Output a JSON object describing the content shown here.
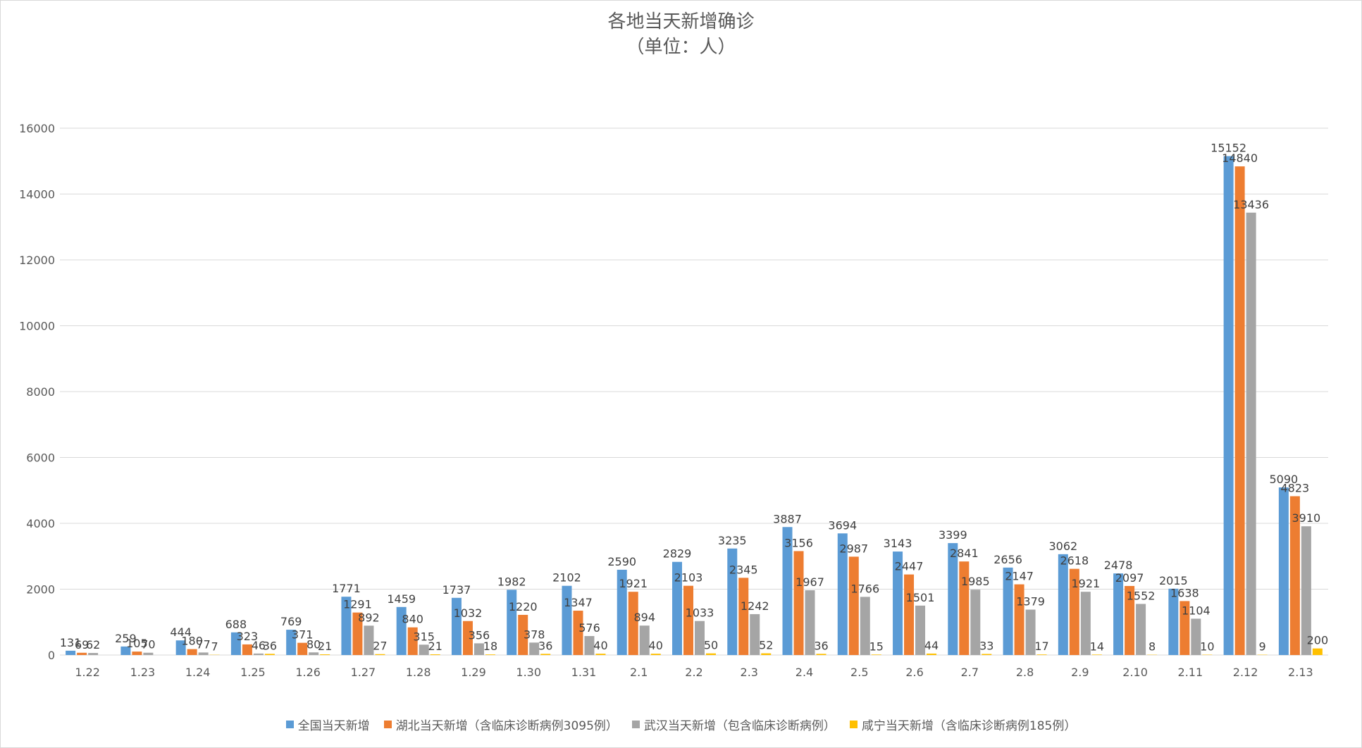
{
  "chart_data": {
    "type": "bar",
    "title": "各地当天新增确诊",
    "subtitle": "（单位：人）",
    "xlabel": "",
    "ylabel": "",
    "ylim": [
      0,
      16000
    ],
    "yticks": [
      0,
      2000,
      4000,
      6000,
      8000,
      10000,
      12000,
      14000,
      16000
    ],
    "grid": true,
    "legend_position": "bottom",
    "categories": [
      "1.22",
      "1.23",
      "1.24",
      "1.25",
      "1.26",
      "1.27",
      "1.28",
      "1.29",
      "1.30",
      "1.31",
      "2.1",
      "2.2",
      "2.3",
      "2.4",
      "2.5",
      "2.6",
      "2.7",
      "2.8",
      "2.9",
      "2.10",
      "2.11",
      "2.12",
      "2.13"
    ],
    "series": [
      {
        "name": "全国当天新增",
        "color": "#5b9bd5",
        "values": [
          131,
          259,
          444,
          688,
          769,
          1771,
          1459,
          1737,
          1982,
          2102,
          2590,
          2829,
          3235,
          3887,
          3694,
          3143,
          3399,
          2656,
          3062,
          2478,
          2015,
          15152,
          5090
        ]
      },
      {
        "name": "湖北当天新增（含临床诊断病例3095例）",
        "color": "#ed7d31",
        "values": [
          69,
          105,
          180,
          323,
          371,
          1291,
          840,
          1032,
          1220,
          1347,
          1921,
          2103,
          2345,
          3156,
          2987,
          2447,
          2841,
          2147,
          2618,
          2097,
          1638,
          14840,
          4823
        ]
      },
      {
        "name": "武汉当天新增（包含临床诊断病例）",
        "color": "#a5a5a5",
        "values": [
          62,
          70,
          77,
          46,
          80,
          892,
          315,
          356,
          378,
          576,
          894,
          1033,
          1242,
          1967,
          1766,
          1501,
          1985,
          1379,
          1921,
          1552,
          1104,
          13436,
          3910
        ]
      },
      {
        "name": "咸宁当天新增（含临床诊断病例185例）",
        "color": "#ffc000",
        "values": [
          null,
          null,
          7,
          36,
          21,
          27,
          21,
          18,
          36,
          40,
          40,
          50,
          52,
          36,
          15,
          44,
          33,
          17,
          14,
          8,
          10,
          9,
          200
        ]
      }
    ]
  }
}
